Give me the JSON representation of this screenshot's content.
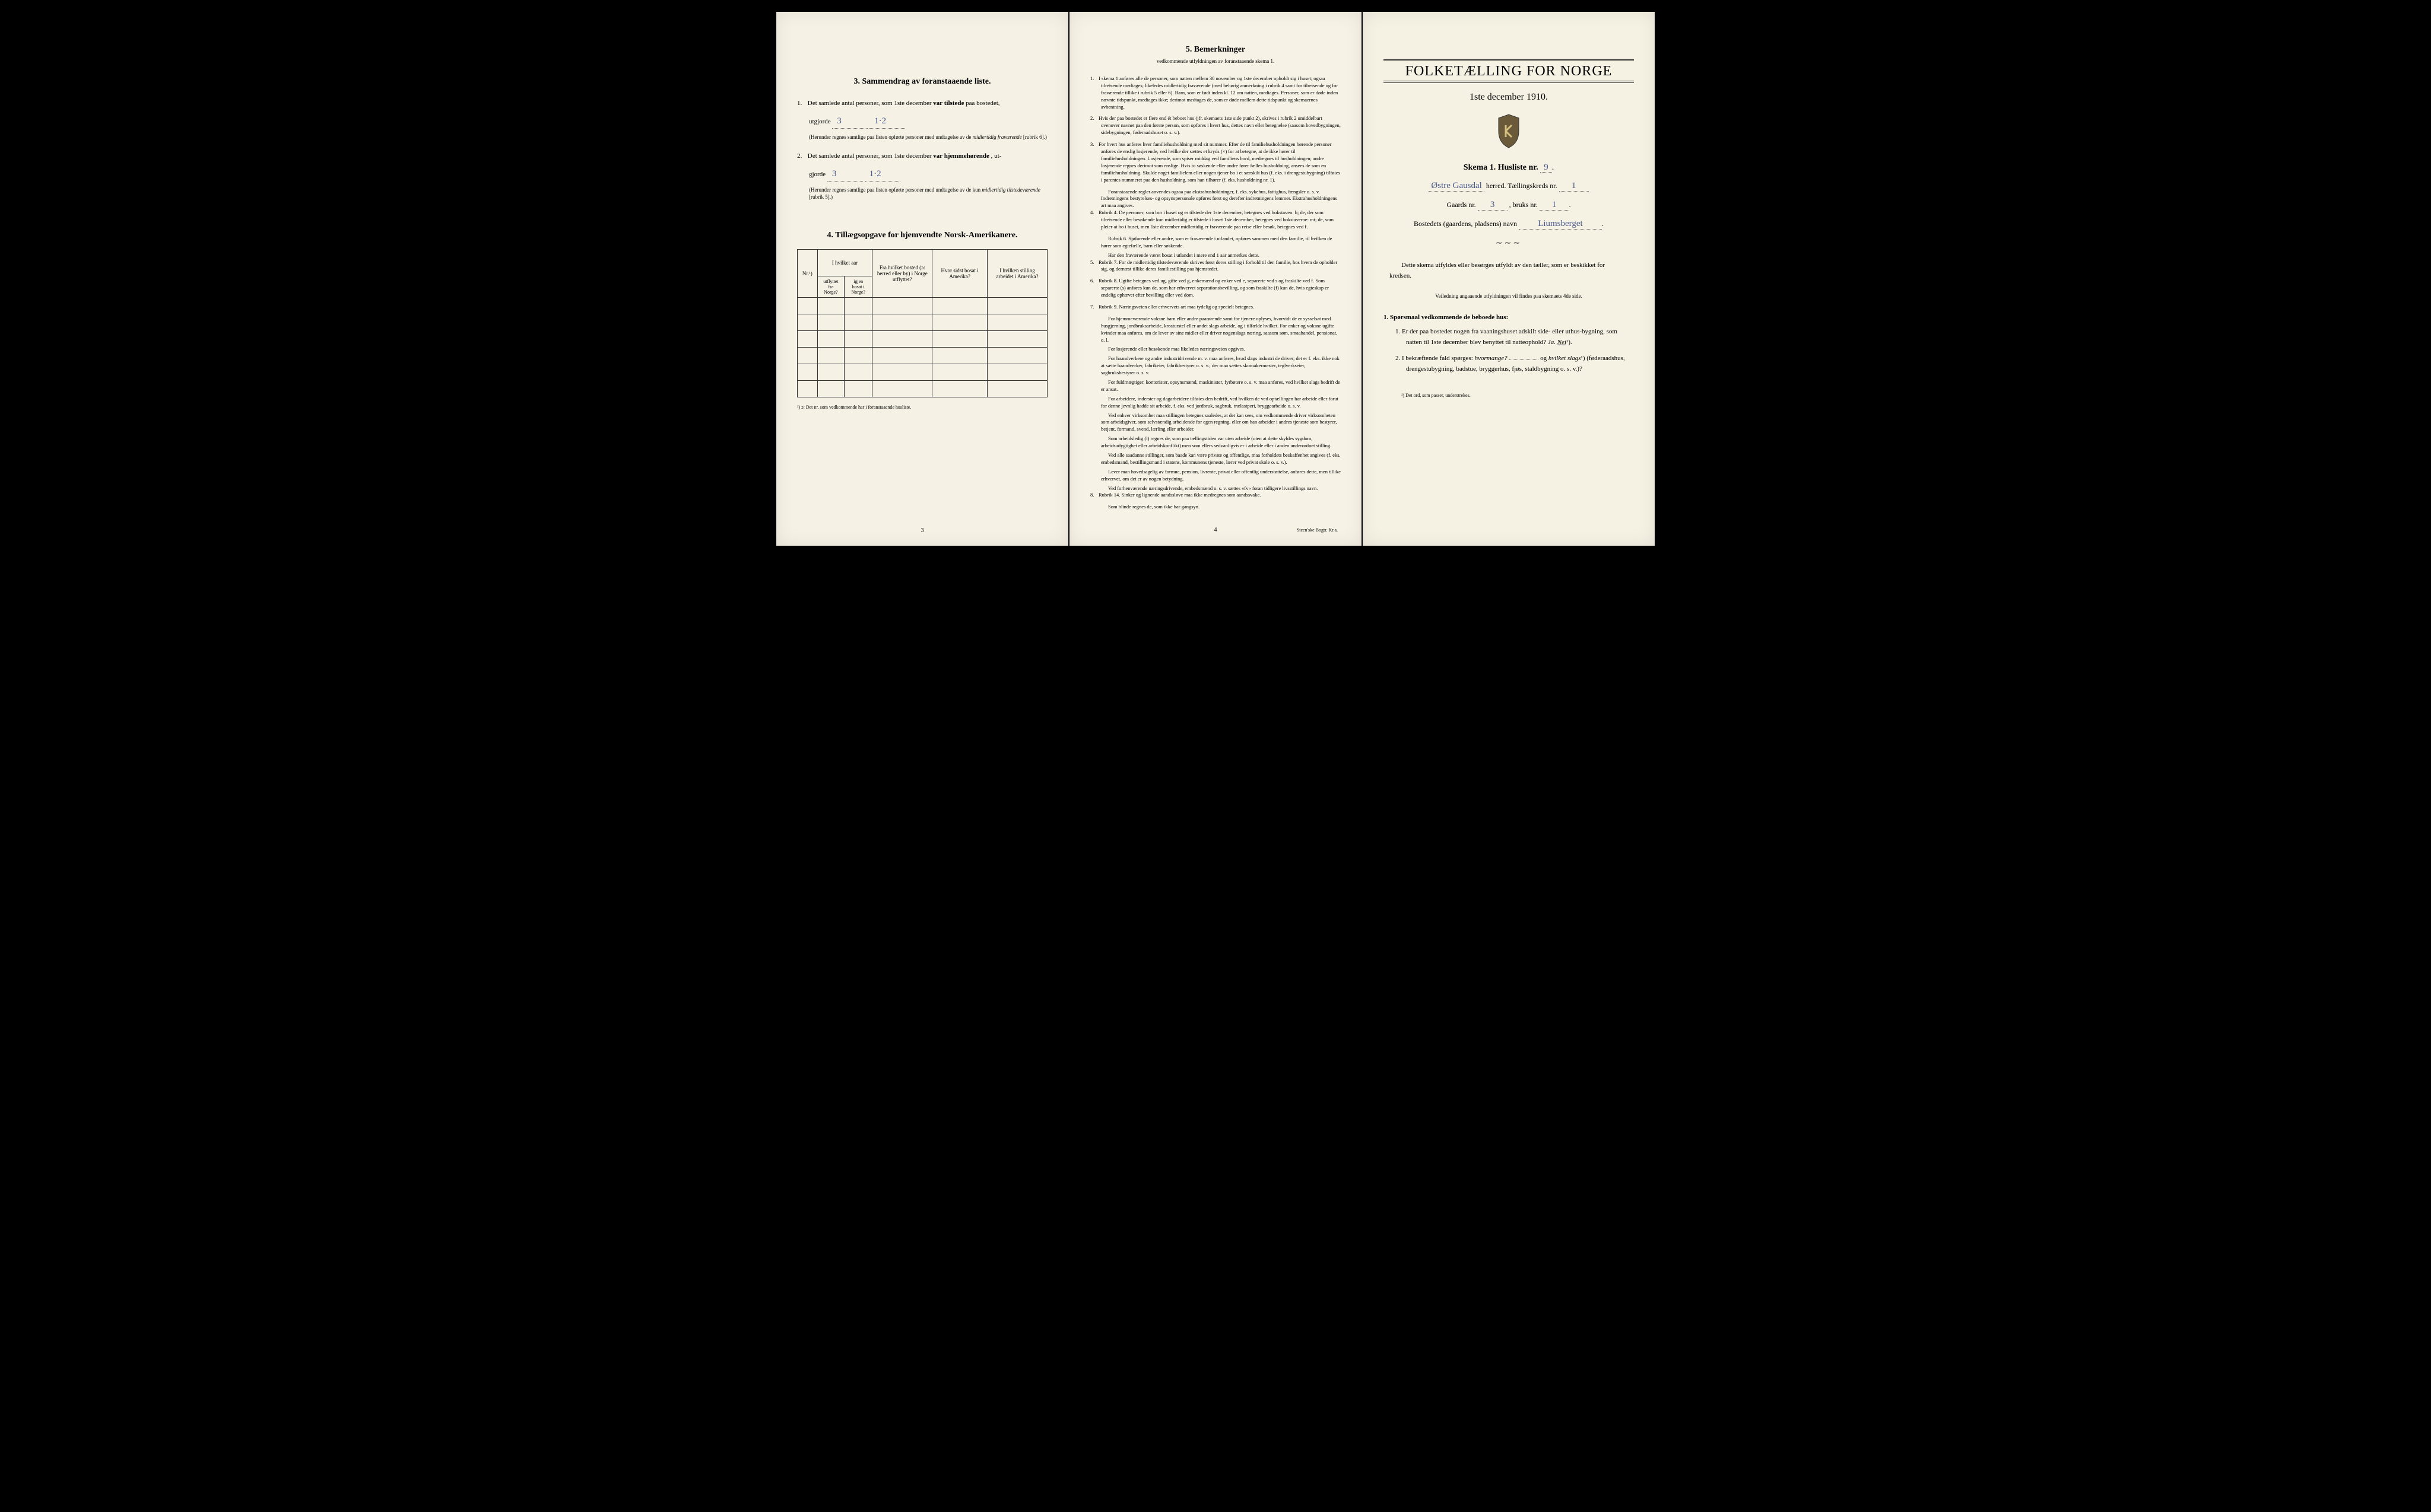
{
  "panel1": {
    "section3_title": "3.   Sammendrag av foranstaaende liste.",
    "item1_pre": "Det samlede antal personer, som 1ste december",
    "item1_bold": "var tilstede",
    "item1_post": "paa bostedet,",
    "utgjorde": "utgjorde",
    "value1": "3",
    "value1_alt": "1·2",
    "item1_sub": "(Herunder regnes samtlige paa listen opførte personer med undtagelse av de",
    "item1_sub_italic": "midlertidig fraværende",
    "item1_sub_end": "[rubrik 6].)",
    "item2_pre": "Det samlede antal personer, som 1ste december",
    "item2_bold": "var hjemmehørende",
    "item2_post": ", ut-",
    "gjorde": "gjorde",
    "value2": "3",
    "value2_alt": "1·2",
    "item2_sub": "(Herunder regnes samtlige paa listen opførte personer med undtagelse av de kun",
    "item2_sub_italic": "midlertidig tilstedeværende",
    "item2_sub_end": "[rubrik 5].)",
    "section4_title": "4.  Tillægsopgave for hjemvendte Norsk-Amerikanere.",
    "table": {
      "col_nr": "Nr.¹)",
      "col_year": "I hvilket aar",
      "col_utflyttet": "utflyttet fra Norge?",
      "col_igjen": "igjen bosat i Norge?",
      "col_bosted": "Fra hvilket bosted (ɔ: herred eller by) i Norge utflyttet?",
      "col_sidst": "Hvor sidst bosat i Amerika?",
      "col_stilling": "I hvilken stilling arbeidet i Amerika?"
    },
    "footnote": "¹) ɔ: Det nr. som vedkommende har i foranstaaende husliste.",
    "page_num": "3"
  },
  "panel2": {
    "section5_title": "5.   Bemerkninger",
    "section5_sub": "vedkommende utfyldningen av foranstaaende skema 1.",
    "items": [
      {
        "n": "1.",
        "text": "I skema 1 anføres alle de personer, som natten mellem 30 november og 1ste december opholdt sig i huset; ogsaa tilreisende medtages; likeledes midlertidig fraværende (med behørig anmerkning i rubrik 4 samt for tilreisende og for fraværende tillike i rubrik 5 eller 6). Barn, som er født inden kl. 12 om natten, medtages. Personer, som er døde inden nævnte tidspunkt, medtages ikke; derimot medtages de, som er døde mellem dette tidspunkt og skemaernes avhentning."
      },
      {
        "n": "2.",
        "text": "Hvis der paa bostedet er flere end ét beboet hus (jfr. skemaets 1ste side punkt 2), skrives i rubrik 2 umiddelbart ovenover navnet paa den første person, som opføres i hvert hus, dettes navn eller betegnelse (saasom hovedbygningen, sidebygningen, føderaadshuset o. s. v.)."
      },
      {
        "n": "3.",
        "text": "For hvert hus anføres hver familiehusholdning med sit nummer. Efter de til familiehusholdningen hørende personer anføres de enslig losjerende, ved hvilke der sættes et kryds (×) for at betegne, at de ikke hører til familiehusholdningen. Losjerende, som spiser middag ved familiens bord, medregnes til husholdningen; andre losjerende regnes derimot som enslige. Hvis to søskende eller andre fører fælles husholdning, ansees de som en familiehusholdning. Skulde noget familielem eller nogen tjener bo i et særskilt hus (f. eks. i drengestubygning) tilføies i parentes nummeret paa den husholdning, som han tilhører (f. eks. husholdning nr. 1)."
      },
      {
        "n": "",
        "text": "Foranstaaende regler anvendes ogsaa paa ekstrahusholdninger, f. eks. sykehus, fattighus, fængsler o. s. v. Indretningens bestyrelses- og opsynspersonale opføres først og derefter indretningens lemmer. Ekstrahusholdningens art maa angives.",
        "sub": true
      },
      {
        "n": "4.",
        "text": "Rubrik 4. De personer, som bor i huset og er tilstede der 1ste december, betegnes ved bokstaven: b; de, der som tilreisende eller besøkende kun midlertidig er tilstede i huset 1ste december, betegnes ved bokstaverne: mt; de, som pleier at bo i huset, men 1ste december midlertidig er fraværende paa reise eller besøk, betegnes ved f."
      },
      {
        "n": "",
        "text": "Rubrik 6. Sjøfarende eller andre, som er fraværende i utlandet, opføres sammen med den familie, til hvilken de hører som egtefælle, barn eller søskende.",
        "sub": true
      },
      {
        "n": "",
        "text": "Har den fraværende været bosat i utlandet i mere end 1 aar anmerkes dette.",
        "sub": true
      },
      {
        "n": "5.",
        "text": "Rubrik 7. For de midlertidig tilstedeværende skrives først deres stilling i forhold til den familie, hos hvem de opholder sig, og dernæst tillike deres familiestilling paa hjemstedet."
      },
      {
        "n": "6.",
        "text": "Rubrik 8. Ugifte betegnes ved ug, gifte ved g, enkemænd og enker ved e, separerte ved s og fraskilte ved f. Som separerte (s) anføres kun de, som har erhvervet separationsbevilling, og som fraskilte (f) kun de, hvis egteskap er endelig ophævet efter bevilling eller ved dom."
      },
      {
        "n": "7.",
        "text": "Rubrik 9. Næringsveien eller erhvervets art maa tydelig og specielt betegnes."
      },
      {
        "n": "",
        "text": "For hjemmeværende voksne barn eller andre paarørende samt for tjenere oplyses, hvorvidt de er sysselsat med husgjerning, jordbruksarbeide, kreaturstel eller andet slags arbeide, og i tilfælde hvilket. For enker og voksne ugifte kvinder maa anføres, om de lever av sine midler eller driver nogenslags næring, saasom søm, smaahandel, pensionat, o. l.",
        "sub": true
      },
      {
        "n": "",
        "text": "For losjerende eller besøkende maa likeledes næringsveien opgives.",
        "sub": true
      },
      {
        "n": "",
        "text": "For haandverkere og andre industridrivende m. v. maa anføres, hvad slags industri de driver; det er f. eks. ikke nok at sætte haandverker, fabrikeier, fabrikbestyrer o. s. v.; der maa sættes skomakermester, teglverkseier, sagbruksbestyrer o. s. v.",
        "sub": true
      },
      {
        "n": "",
        "text": "For fuldmægtiger, kontorister, opsynsmænd, maskinister, fyrbøtere o. s. v. maa anføres, ved hvilket slags bedrift de er ansat.",
        "sub": true
      },
      {
        "n": "",
        "text": "For arbeidere, inderster og dagarbeidere tilføies den bedrift, ved hvilken de ved optællingen har arbeide eller forut for denne jevnlig hadde sit arbeide, f. eks. ved jordbruk, sagbruk, trælastperi, bryggearbeide o. s. v.",
        "sub": true
      },
      {
        "n": "",
        "text": "Ved enhver virksomhet maa stillingen betegnes saaledes, at det kan sees, om vedkommende driver virksomheten som arbeidsgiver, som selvstændig arbeidende for egen regning, eller om han arbeider i andres tjeneste som bestyrer, betjent, formand, svend, lærling eller arbeider.",
        "sub": true
      },
      {
        "n": "",
        "text": "Som arbeidsledig (l) regnes de, som paa tællingstiden var uten arbeide (uten at dette skyldes sygdom, arbeidsudygtighet eller arbeidskonflikt) men som ellers sedvanligvis er i arbeide eller i anden underordnet stilling.",
        "sub": true
      },
      {
        "n": "",
        "text": "Ved alle saadanne stillinger, som baade kan være private og offentlige, maa forholdets beskaffenhet angives (f. eks. embedsmand, bestillingsmand i statens, kommunens tjeneste, lærer ved privat skole o. s. v.).",
        "sub": true
      },
      {
        "n": "",
        "text": "Lever man hovedsagelig av formue, pension, livrente, privat eller offentlig understøttelse, anføres dette, men tillike erhvervet, om det er av nogen betydning.",
        "sub": true
      },
      {
        "n": "",
        "text": "Ved forhenværende næringsdrivende, embedsmænd o. s. v. sættes «fv» foran tidligere livsstillings navn.",
        "sub": true
      },
      {
        "n": "8.",
        "text": "Rubrik 14. Sinker og lignende aandssløve maa ikke medregnes som aandssvake."
      },
      {
        "n": "",
        "text": "Som blinde regnes de, som ikke har gangsyn.",
        "sub": true
      }
    ],
    "page_num": "4",
    "printer": "Steen'ske Bogtr.  Kr.a."
  },
  "panel3": {
    "main_title": "FOLKETÆLLING FOR NORGE",
    "date": "1ste december 1910.",
    "skema": "Skema 1.  Husliste nr.",
    "husliste_nr": "9",
    "herred_hw": "Østre Gausdal",
    "herred_label": "herred.  Tællingskreds nr.",
    "kreds_nr": "1",
    "gaards_label": "Gaards nr.",
    "gaards_nr": "3",
    "bruks_label": ", bruks nr.",
    "bruks_nr": "1",
    "bosted_label": "Bostedets (gaardens, pladsens) navn",
    "bosted_hw": "Liumsberget",
    "instruction": "Dette skema utfyldes eller besørges utfyldt av den tæller, som er beskikket for kredsen.",
    "instruction_sub": "Veiledning angaaende utfyldningen vil findes paa skemaets 4de side.",
    "q_header": "1. Spørsmaal vedkommende de beboede hus:",
    "q1": "Er der paa bostedet nogen fra vaaningshuset adskilt side- eller uthus-bygning, som natten til 1ste december blev benyttet til natteophold?",
    "q1_ja": "Ja.",
    "q1_nei": "Nei",
    "q1_sup": "¹).",
    "q2": "I bekræftende fald spørges:",
    "q2_italic": "hvormange?",
    "q2_og": "og",
    "q2_italic2": "hvilket slags",
    "q2_sup": "¹)",
    "q2_post": "(føderaadshus, drengestubygning, badstue, bryggerhus, fjøs, staldbygning o. s. v.)?",
    "footnote": "¹) Det ord, som passer, understrekes."
  }
}
